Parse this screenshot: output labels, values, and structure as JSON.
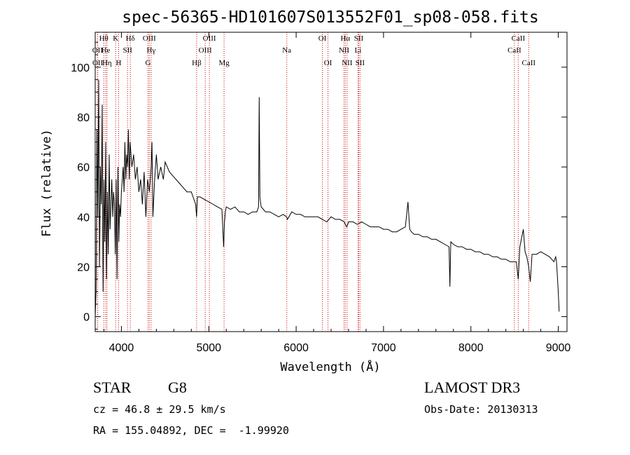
{
  "chart_data": {
    "type": "line",
    "title": "spec-56365-HD101607S013552F01_sp08-058.fits",
    "xlabel": "Wavelength (Å)",
    "ylabel": "Flux (relative)",
    "xlim": [
      3700,
      9100
    ],
    "ylim": [
      -6,
      114
    ],
    "xticks": [
      4000,
      5000,
      6000,
      7000,
      8000,
      9000
    ],
    "yticks": [
      0,
      20,
      40,
      60,
      80,
      100
    ],
    "series": [
      {
        "name": "spectrum",
        "x": [
          3700,
          3710,
          3720,
          3730,
          3740,
          3750,
          3760,
          3770,
          3780,
          3790,
          3800,
          3810,
          3820,
          3830,
          3840,
          3850,
          3860,
          3870,
          3880,
          3890,
          3900,
          3910,
          3920,
          3930,
          3940,
          3950,
          3960,
          3970,
          3980,
          3990,
          4000,
          4010,
          4020,
          4030,
          4040,
          4050,
          4060,
          4070,
          4080,
          4090,
          4100,
          4120,
          4140,
          4160,
          4180,
          4200,
          4220,
          4240,
          4260,
          4280,
          4300,
          4320,
          4340,
          4350,
          4360,
          4380,
          4400,
          4420,
          4450,
          4480,
          4500,
          4550,
          4600,
          4650,
          4700,
          4750,
          4800,
          4850,
          4860,
          4870,
          4900,
          4950,
          5000,
          5050,
          5100,
          5150,
          5170,
          5180,
          5190,
          5200,
          5250,
          5300,
          5350,
          5400,
          5450,
          5500,
          5550,
          5570,
          5577,
          5585,
          5600,
          5650,
          5700,
          5750,
          5800,
          5850,
          5890,
          5900,
          5950,
          6000,
          6050,
          6100,
          6150,
          6200,
          6250,
          6300,
          6350,
          6400,
          6450,
          6500,
          6550,
          6563,
          6580,
          6600,
          6650,
          6700,
          6750,
          6800,
          6850,
          6900,
          6950,
          7000,
          7050,
          7100,
          7150,
          7200,
          7250,
          7280,
          7300,
          7320,
          7350,
          7400,
          7450,
          7500,
          7550,
          7600,
          7650,
          7700,
          7750,
          7760,
          7770,
          7800,
          7850,
          7900,
          7950,
          8000,
          8050,
          8100,
          8150,
          8200,
          8250,
          8300,
          8350,
          8400,
          8450,
          8500,
          8520,
          8542,
          8560,
          8600,
          8620,
          8640,
          8662,
          8680,
          8700,
          8750,
          8800,
          8850,
          8900,
          8950,
          8970,
          8980,
          8990,
          9000,
          9010
        ],
        "y": [
          0,
          10,
          75,
          40,
          95,
          20,
          60,
          45,
          85,
          10,
          55,
          30,
          70,
          15,
          50,
          25,
          65,
          35,
          45,
          55,
          40,
          50,
          45,
          25,
          55,
          15,
          60,
          30,
          45,
          40,
          50,
          55,
          60,
          50,
          70,
          55,
          65,
          60,
          75,
          55,
          70,
          60,
          65,
          55,
          60,
          50,
          55,
          45,
          58,
          40,
          55,
          50,
          60,
          70,
          40,
          55,
          65,
          55,
          60,
          55,
          62,
          58,
          56,
          54,
          52,
          50,
          50,
          45,
          40,
          48,
          48,
          47,
          46,
          45,
          44,
          43,
          28,
          38,
          42,
          44,
          43,
          44,
          42,
          42,
          41,
          42,
          42,
          44,
          88,
          48,
          44,
          42,
          42,
          41,
          40,
          41,
          40,
          39,
          42,
          41,
          41,
          40,
          40,
          40,
          40,
          39,
          38,
          40,
          39,
          39,
          38,
          37,
          36,
          38,
          38,
          37,
          38,
          37,
          36,
          36,
          36,
          35,
          35,
          34,
          34,
          35,
          36,
          46,
          35,
          34,
          33,
          33,
          32,
          32,
          31,
          31,
          30,
          29,
          28,
          12,
          30,
          29,
          28,
          28,
          27,
          27,
          26,
          26,
          25,
          25,
          24,
          24,
          23,
          23,
          22,
          22,
          22,
          15,
          28,
          35,
          26,
          24,
          20,
          14,
          25,
          25,
          26,
          25,
          24,
          22,
          24,
          22,
          16,
          10,
          2
        ]
      }
    ],
    "lines": [
      {
        "label": "OII",
        "x": 3727,
        "row": 2
      },
      {
        "label": "OII",
        "x": 3729,
        "row": 3
      },
      {
        "label": "Hθ",
        "x": 3798,
        "row": 1
      },
      {
        "label": "He",
        "x": 3820,
        "row": 2
      },
      {
        "label": "Hη",
        "x": 3835,
        "row": 3
      },
      {
        "label": "K",
        "x": 3934,
        "row": 1
      },
      {
        "label": "H",
        "x": 3968,
        "row": 3
      },
      {
        "label": "SII",
        "x": 4070,
        "row": 2
      },
      {
        "label": "Hδ",
        "x": 4102,
        "row": 1
      },
      {
        "label": "OIII",
        "x": 4320,
        "row": 1
      },
      {
        "label": "Hγ",
        "x": 4340,
        "row": 2
      },
      {
        "label": "G",
        "x": 4305,
        "row": 3
      },
      {
        "label": "Hβ",
        "x": 4861,
        "row": 3
      },
      {
        "label": "OIII",
        "x": 4959,
        "row": 2
      },
      {
        "label": "OIII",
        "x": 5007,
        "row": 1
      },
      {
        "label": "Mg",
        "x": 5175,
        "row": 3
      },
      {
        "label": "Na",
        "x": 5893,
        "row": 2
      },
      {
        "label": "OI",
        "x": 6300,
        "row": 1
      },
      {
        "label": "OI",
        "x": 6364,
        "row": 3
      },
      {
        "label": "NII",
        "x": 6548,
        "row": 2
      },
      {
        "label": "Hα",
        "x": 6563,
        "row": 1
      },
      {
        "label": "NII",
        "x": 6583,
        "row": 3
      },
      {
        "label": "Li",
        "x": 6708,
        "row": 2
      },
      {
        "label": "SII",
        "x": 6716,
        "row": 1
      },
      {
        "label": "SII",
        "x": 6731,
        "row": 3
      },
      {
        "label": "CaII",
        "x": 8498,
        "row": 2
      },
      {
        "label": "CaII",
        "x": 8542,
        "row": 1
      },
      {
        "label": "CaII",
        "x": 8662,
        "row": 3
      }
    ]
  },
  "info": {
    "class": "STAR",
    "subclass": "G8",
    "survey": "LAMOST DR3",
    "cz": "cz = 46.8 ± 29.5 km/s",
    "obs_date": "Obs-Date: 20130313",
    "coords": "RA = 155.04892, DEC =  -1.99920"
  },
  "colors": {
    "line_marker": "#cc0000",
    "spectrum": "#000000"
  }
}
